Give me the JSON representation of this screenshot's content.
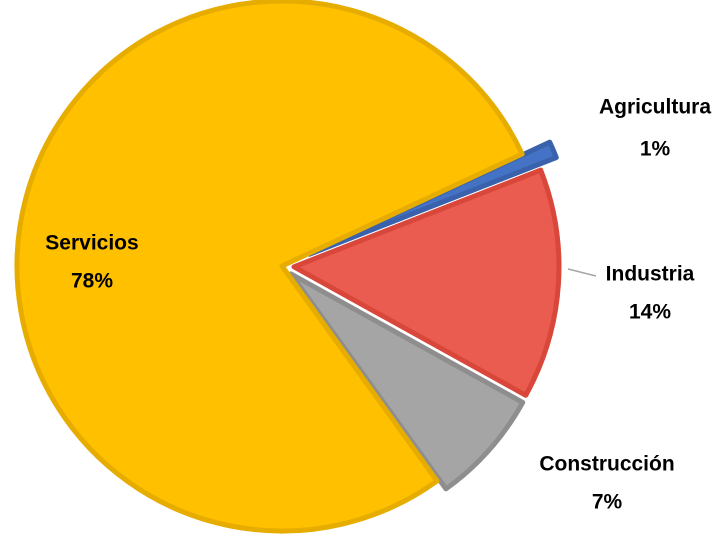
{
  "chart_data": {
    "type": "pie",
    "categories": [
      "Agricultura",
      "Industria",
      "Construcción",
      "Servicios"
    ],
    "values": [
      1,
      14,
      7,
      78
    ],
    "value_labels": [
      "1%",
      "14%",
      "7%",
      "78%"
    ],
    "colors": [
      "#4472C4",
      "#EA5B50",
      "#A5A5A5",
      "#FFC000"
    ]
  }
}
